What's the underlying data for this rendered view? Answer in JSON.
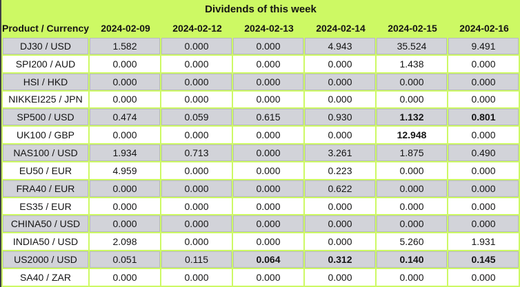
{
  "colors": {
    "header_bg": "#cdf964",
    "row_alt_bg": "#d2d3d9",
    "row_main_bg": "#ffffff",
    "grid_border": "#cdf964",
    "outer_left_border": "#3f3f46",
    "text": "#141414"
  },
  "chart_data": {
    "type": "table",
    "title": "Dividends of this week",
    "columns": [
      "Product / Currency",
      "2024-02-09",
      "2024-02-12",
      "2024-02-13",
      "2024-02-14",
      "2024-02-15",
      "2024-02-16"
    ],
    "rows": [
      {
        "product": "DJ30 / USD",
        "values": [
          "1.582",
          "0.000",
          "0.000",
          "4.943",
          "35.524",
          "9.491"
        ],
        "bold": []
      },
      {
        "product": "SPI200 / AUD",
        "values": [
          "0.000",
          "0.000",
          "0.000",
          "0.000",
          "1.438",
          "0.000"
        ],
        "bold": []
      },
      {
        "product": "HSI / HKD",
        "values": [
          "0.000",
          "0.000",
          "0.000",
          "0.000",
          "0.000",
          "0.000"
        ],
        "bold": []
      },
      {
        "product": "NIKKEI225 / JPN",
        "values": [
          "0.000",
          "0.000",
          "0.000",
          "0.000",
          "0.000",
          "0.000"
        ],
        "bold": []
      },
      {
        "product": "SP500 / USD",
        "values": [
          "0.474",
          "0.059",
          "0.615",
          "0.930",
          "1.132",
          "0.801"
        ],
        "bold": [
          4,
          5
        ]
      },
      {
        "product": "UK100 / GBP",
        "values": [
          "0.000",
          "0.000",
          "0.000",
          "0.000",
          "12.948",
          "0.000"
        ],
        "bold": [
          4
        ]
      },
      {
        "product": "NAS100 / USD",
        "values": [
          "1.934",
          "0.713",
          "0.000",
          "3.261",
          "1.875",
          "0.490"
        ],
        "bold": []
      },
      {
        "product": "EU50 / EUR",
        "values": [
          "4.959",
          "0.000",
          "0.000",
          "0.223",
          "0.000",
          "0.000"
        ],
        "bold": []
      },
      {
        "product": "FRA40 / EUR",
        "values": [
          "0.000",
          "0.000",
          "0.000",
          "0.622",
          "0.000",
          "0.000"
        ],
        "bold": []
      },
      {
        "product": "ES35 / EUR",
        "values": [
          "0.000",
          "0.000",
          "0.000",
          "0.000",
          "0.000",
          "0.000"
        ],
        "bold": []
      },
      {
        "product": "CHINA50 / USD",
        "values": [
          "0.000",
          "0.000",
          "0.000",
          "0.000",
          "0.000",
          "0.000"
        ],
        "bold": []
      },
      {
        "product": "INDIA50 / USD",
        "values": [
          "2.098",
          "0.000",
          "0.000",
          "0.000",
          "5.260",
          "1.931"
        ],
        "bold": []
      },
      {
        "product": "US2000 / USD",
        "values": [
          "0.051",
          "0.115",
          "0.064",
          "0.312",
          "0.140",
          "0.145"
        ],
        "bold": [
          2,
          3,
          4,
          5
        ]
      },
      {
        "product": "SA40 / ZAR",
        "values": [
          "0.000",
          "0.000",
          "0.000",
          "0.000",
          "0.000",
          "0.000"
        ],
        "bold": []
      }
    ]
  }
}
